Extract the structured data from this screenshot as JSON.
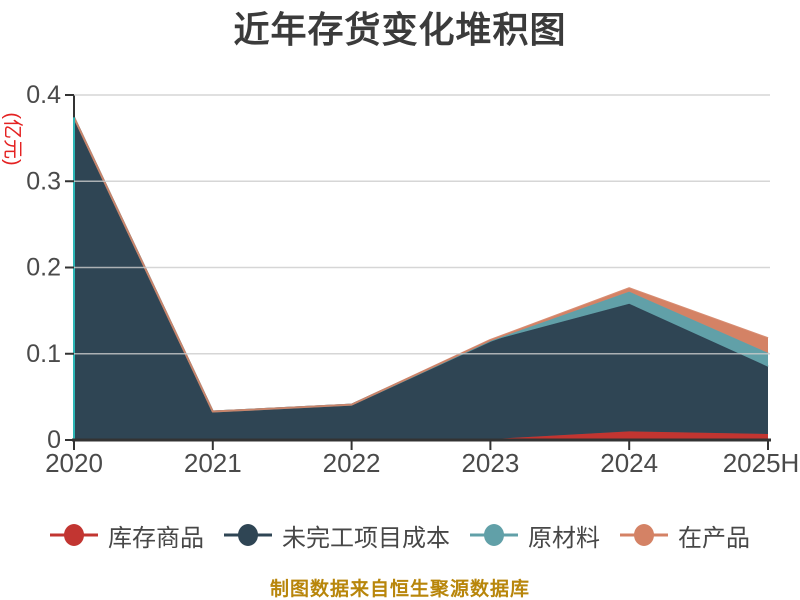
{
  "footer": {
    "text": "制图数据来自恒生聚源数据库",
    "color": "#b8860b"
  },
  "colors": {
    "title": "#3b3b3b",
    "tick_label": "#4a4a4a",
    "legend_label": "#474747",
    "ylabel": "#e42222",
    "footer": "#b8860b",
    "axis": "#333333",
    "grid": "#cccccc",
    "axis_accent": "#2cb5b5",
    "background": "#ffffff"
  },
  "chart_data": {
    "type": "area",
    "stacked": true,
    "title": "近年存货变化堆积图",
    "ylabel": "(亿元)",
    "xlabel": "",
    "x": [
      "2020",
      "2021",
      "2022",
      "2023",
      "2024",
      "2025H"
    ],
    "series": [
      {
        "name": "库存商品",
        "key": "finished-goods-in-stock",
        "color": "#c23531",
        "values": [
          0,
          0,
          0,
          0.001,
          0.01,
          0.007
        ]
      },
      {
        "name": "未完工项目成本",
        "key": "unfinished-project-cost",
        "color": "#2f4554",
        "values": [
          0.374,
          0.033,
          0.041,
          0.114,
          0.148,
          0.078
        ]
      },
      {
        "name": "原材料",
        "key": "raw-materials",
        "color": "#61a0a8",
        "values": [
          0,
          0,
          0,
          0,
          0.014,
          0.016
        ]
      },
      {
        "name": "在产品",
        "key": "work-in-progress",
        "color": "#d48265",
        "values": [
          0,
          0,
          0,
          0.001,
          0.004,
          0.017
        ]
      }
    ],
    "yticks": [
      "0",
      "0.1",
      "0.2",
      "0.3",
      "0.4"
    ],
    "ylim": [
      0,
      0.4
    ],
    "grid": true,
    "legend_position": "bottom",
    "legend": [
      "库存商品",
      "未完工项目成本",
      "原材料",
      "在产品"
    ]
  }
}
